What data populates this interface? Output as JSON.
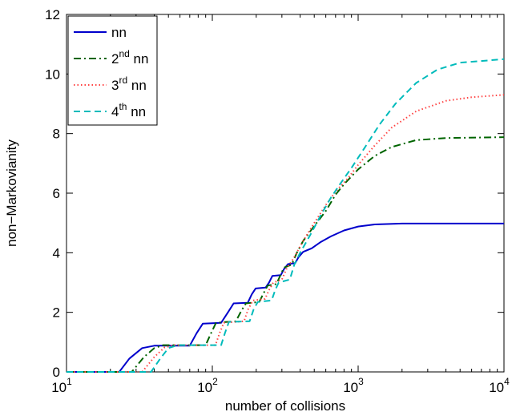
{
  "chart_data": {
    "type": "line",
    "title": "",
    "xlabel": "number of collisions",
    "ylabel": "non−Markovianity",
    "x_scale": "log",
    "xlim": [
      10,
      10000
    ],
    "ylim": [
      0,
      12
    ],
    "x_ticks": [
      {
        "value": 10,
        "base": "10",
        "exp": "1"
      },
      {
        "value": 100,
        "base": "10",
        "exp": "2"
      },
      {
        "value": 1000,
        "base": "10",
        "exp": "3"
      },
      {
        "value": 10000,
        "base": "10",
        "exp": "4"
      }
    ],
    "y_ticks": [
      {
        "value": 0,
        "label": "0"
      },
      {
        "value": 2,
        "label": "2"
      },
      {
        "value": 4,
        "label": "4"
      },
      {
        "value": 6,
        "label": "6"
      },
      {
        "value": 8,
        "label": "8"
      },
      {
        "value": 10,
        "label": "10"
      },
      {
        "value": 12,
        "label": "12"
      }
    ],
    "grid": false,
    "legend_position": "top-left",
    "series": [
      {
        "name": "nn",
        "name_base": "",
        "name_sup": "",
        "name_rest": "nn",
        "color": "#0000cc",
        "style": "solid",
        "points": [
          [
            10,
            0
          ],
          [
            23,
            0
          ],
          [
            27,
            0.45
          ],
          [
            33,
            0.8
          ],
          [
            40,
            0.88
          ],
          [
            70,
            0.88
          ],
          [
            78,
            1.3
          ],
          [
            86,
            1.62
          ],
          [
            115,
            1.65
          ],
          [
            128,
            2.0
          ],
          [
            140,
            2.3
          ],
          [
            175,
            2.32
          ],
          [
            186,
            2.6
          ],
          [
            198,
            2.8
          ],
          [
            232,
            2.83
          ],
          [
            245,
            3.0
          ],
          [
            258,
            3.22
          ],
          [
            295,
            3.25
          ],
          [
            310,
            3.45
          ],
          [
            330,
            3.62
          ],
          [
            370,
            3.65
          ],
          [
            390,
            3.85
          ],
          [
            420,
            4.03
          ],
          [
            480,
            4.15
          ],
          [
            550,
            4.35
          ],
          [
            650,
            4.55
          ],
          [
            800,
            4.75
          ],
          [
            1000,
            4.88
          ],
          [
            1300,
            4.95
          ],
          [
            2000,
            4.98
          ],
          [
            10000,
            4.98
          ]
        ]
      },
      {
        "name": "2nd nn",
        "name_base": "2",
        "name_sup": "nd",
        "name_rest": " nn",
        "color": "#006400",
        "style": "dashdot",
        "points": [
          [
            10,
            0
          ],
          [
            28,
            0
          ],
          [
            34,
            0.5
          ],
          [
            40,
            0.8
          ],
          [
            46,
            0.9
          ],
          [
            90,
            0.9
          ],
          [
            98,
            1.3
          ],
          [
            106,
            1.65
          ],
          [
            145,
            1.7
          ],
          [
            158,
            2.05
          ],
          [
            170,
            2.3
          ],
          [
            210,
            2.35
          ],
          [
            225,
            2.65
          ],
          [
            240,
            2.9
          ],
          [
            275,
            2.95
          ],
          [
            290,
            3.2
          ],
          [
            310,
            3.5
          ],
          [
            350,
            3.6
          ],
          [
            380,
            4.0
          ],
          [
            420,
            4.4
          ],
          [
            500,
            4.9
          ],
          [
            600,
            5.4
          ],
          [
            700,
            5.95
          ],
          [
            800,
            6.3
          ],
          [
            1000,
            6.8
          ],
          [
            1300,
            7.25
          ],
          [
            1700,
            7.55
          ],
          [
            2500,
            7.78
          ],
          [
            4000,
            7.85
          ],
          [
            10000,
            7.88
          ]
        ]
      },
      {
        "name": "3rd nn",
        "name_base": "3",
        "name_sup": "rd",
        "name_rest": " nn",
        "color": "#ff4444",
        "style": "dotted",
        "points": [
          [
            10,
            0
          ],
          [
            33,
            0
          ],
          [
            40,
            0.5
          ],
          [
            47,
            0.82
          ],
          [
            55,
            0.9
          ],
          [
            105,
            0.9
          ],
          [
            112,
            1.3
          ],
          [
            120,
            1.65
          ],
          [
            165,
            1.7
          ],
          [
            176,
            2.1
          ],
          [
            190,
            2.4
          ],
          [
            230,
            2.45
          ],
          [
            245,
            2.75
          ],
          [
            262,
            3.0
          ],
          [
            300,
            3.1
          ],
          [
            325,
            3.5
          ],
          [
            360,
            3.8
          ],
          [
            420,
            4.4
          ],
          [
            500,
            5.0
          ],
          [
            600,
            5.6
          ],
          [
            700,
            6.05
          ],
          [
            850,
            6.5
          ],
          [
            1000,
            6.95
          ],
          [
            1300,
            7.6
          ],
          [
            1700,
            8.2
          ],
          [
            2500,
            8.75
          ],
          [
            4000,
            9.1
          ],
          [
            6000,
            9.22
          ],
          [
            10000,
            9.3
          ]
        ]
      },
      {
        "name": "4th nn",
        "name_base": "4",
        "name_sup": "th",
        "name_rest": " nn",
        "color": "#00bbbb",
        "style": "dashed",
        "points": [
          [
            10,
            0
          ],
          [
            38,
            0
          ],
          [
            44,
            0.45
          ],
          [
            50,
            0.8
          ],
          [
            58,
            0.9
          ],
          [
            115,
            0.9
          ],
          [
            122,
            1.3
          ],
          [
            130,
            1.68
          ],
          [
            180,
            1.7
          ],
          [
            192,
            2.1
          ],
          [
            205,
            2.35
          ],
          [
            255,
            2.4
          ],
          [
            270,
            2.75
          ],
          [
            285,
            3.0
          ],
          [
            340,
            3.1
          ],
          [
            365,
            3.6
          ],
          [
            400,
            4.0
          ],
          [
            470,
            4.6
          ],
          [
            560,
            5.3
          ],
          [
            650,
            5.85
          ],
          [
            750,
            6.3
          ],
          [
            900,
            6.85
          ],
          [
            1100,
            7.5
          ],
          [
            1400,
            8.3
          ],
          [
            1800,
            9.0
          ],
          [
            2500,
            9.7
          ],
          [
            3500,
            10.15
          ],
          [
            5000,
            10.38
          ],
          [
            10000,
            10.5
          ]
        ]
      }
    ]
  }
}
